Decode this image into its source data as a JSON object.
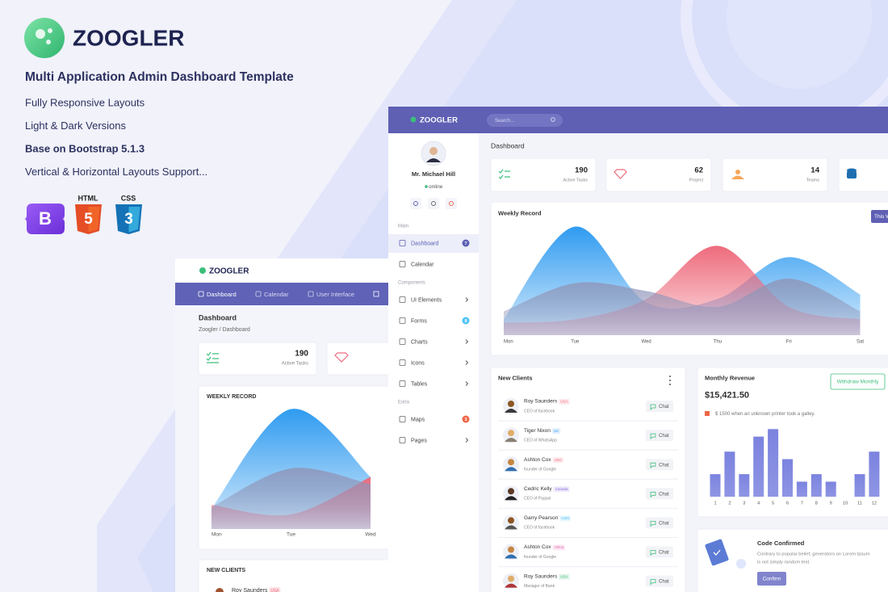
{
  "promo": {
    "logo": "ZOOGLER",
    "tagline": "Multi Application Admin Dashboard Template",
    "features": [
      "Fully Responsive Layouts",
      "Light & Dark Versions",
      "Base on Bootstrap 5.1.3",
      "Vertical & Horizontal Layouts Support..."
    ],
    "badges": {
      "bootstrap": "B",
      "html": {
        "label": "HTML",
        "glyph": "5"
      },
      "css": {
        "label": "CSS",
        "glyph": "3"
      }
    }
  },
  "back_dashboard": {
    "brand": "ZOOGLER",
    "nav": [
      "Dashboard",
      "Calendar",
      "User Interface"
    ],
    "heading": "Dashboard",
    "breadcrumb": "Zoogler / Dashboard",
    "stat": {
      "value": 190,
      "label": "Active Tasks"
    },
    "weekly_record": {
      "type": "area",
      "title": "WEEKLY RECORD",
      "categories": [
        "Mon",
        "Tue",
        "Wed"
      ],
      "ylim": [
        0,
        100
      ],
      "series": [
        {
          "color": "#2f9bf0",
          "values": [
            17,
            99,
            43
          ]
        },
        {
          "color": "#ee6b7c",
          "values": [
            20,
            12,
            43
          ]
        },
        {
          "color": "#8f95b8",
          "values": [
            18,
            50,
            37
          ]
        }
      ]
    },
    "new_clients": {
      "title": "NEW CLIENTS",
      "first": {
        "name": "Roy Saunders",
        "tag": "USA"
      }
    }
  },
  "dashboard": {
    "brand": "ZOOGLER",
    "search": "Search...",
    "user": {
      "name": "Mr. Michael Hill",
      "status": "online"
    },
    "sidebar": [
      {
        "title": "Main",
        "items": [
          {
            "label": "Dashboard",
            "badge": 7,
            "badge_color": "#5c5fb5",
            "active": true
          },
          {
            "label": "Calendar"
          }
        ]
      },
      {
        "title": "Components",
        "items": [
          {
            "label": "UI Elements",
            "arrow": true
          },
          {
            "label": "Forms",
            "badge": 8,
            "badge_color": "#4fc3f7"
          },
          {
            "label": "Charts",
            "arrow": true
          },
          {
            "label": "Icons",
            "arrow": true
          },
          {
            "label": "Tables",
            "arrow": true
          }
        ]
      },
      {
        "title": "Extra",
        "items": [
          {
            "label": "Maps",
            "badge": 3,
            "badge_color": "#f06548"
          },
          {
            "label": "Pages",
            "arrow": true
          }
        ]
      }
    ],
    "heading": "Dashboard",
    "stats": [
      {
        "value": 190,
        "label": "Active Tasks"
      },
      {
        "value": 62,
        "label": "Project"
      },
      {
        "value": 14,
        "label": "Teams"
      }
    ],
    "weekly_record": {
      "type": "area",
      "title": "Weekly Record",
      "button": "This Week",
      "categories": [
        "Mon",
        "Tue",
        "Wed",
        "Thu",
        "Fri",
        "Sat"
      ],
      "ylim": [
        0,
        100
      ],
      "series": [
        {
          "color": "#2f9bf0",
          "values": [
            14,
            96,
            29,
            32,
            69,
            36
          ]
        },
        {
          "color": "#ee6b7c",
          "values": [
            11,
            14,
            32,
            79,
            25,
            14
          ]
        },
        {
          "color": "#8f95b8",
          "values": [
            21,
            46,
            39,
            25,
            50,
            21
          ]
        }
      ]
    },
    "new_clients": {
      "title": "New Clients",
      "action": "Chat",
      "rows": [
        {
          "name": "Roy Saunders",
          "tag": "USA",
          "tag_color": "#f06a7e",
          "role": "CEO of facebook"
        },
        {
          "name": "Tiger Nixon",
          "tag": "UK",
          "tag_color": "#3e9cf0",
          "role": "CEO of WhatsApp"
        },
        {
          "name": "Ashton Cox",
          "tag": "USA",
          "tag_color": "#f06a7e",
          "role": "founder of Google"
        },
        {
          "name": "Cedric Kelly",
          "tag": "Canada",
          "tag_color": "#8b6fe0",
          "role": "CEO of Paypal"
        },
        {
          "name": "Garry Pearson",
          "tag": "India",
          "tag_color": "#4fc3f7",
          "role": "CEO of facebook"
        },
        {
          "name": "Ashton Cox",
          "tag": "Africa",
          "tag_color": "#e667b0",
          "role": "founder of Google"
        },
        {
          "name": "Roy Saunders",
          "tag": "USA",
          "tag_color": "#3cbf7a",
          "role": "Manager of Bank"
        }
      ]
    },
    "monthly_revenue": {
      "type": "bar",
      "title": "Monthly Revenue",
      "button": "Withdraw Monthly",
      "amount": "$15,421.50",
      "note": "$ 1500 when an unknown printer took a galley.",
      "categories": [
        1,
        2,
        3,
        4,
        5,
        6,
        7,
        8,
        9,
        10,
        11,
        12
      ],
      "values": [
        3,
        6,
        3,
        8,
        9,
        5,
        2,
        3,
        2,
        0,
        3,
        6
      ],
      "ylim": [
        0,
        10
      ],
      "color": "#7b83df"
    },
    "code_confirmed": {
      "title": "Code Confirmed",
      "text": [
        "Contrary to popular belief, generators on Lorem Ipsum",
        "is not simply random text."
      ],
      "button": "Confirm"
    }
  }
}
